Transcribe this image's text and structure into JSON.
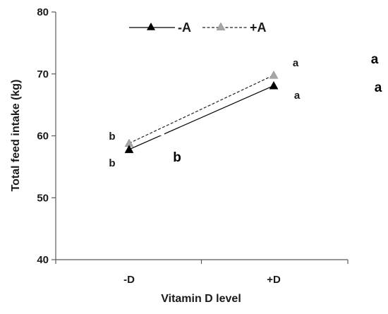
{
  "chart_data": {
    "type": "line",
    "title": "",
    "xlabel": "Vitamin D level",
    "ylabel": "Total feed intake (kg)",
    "categories": [
      "-D",
      "+D"
    ],
    "ylim": [
      40,
      80
    ],
    "yticks": [
      40,
      50,
      60,
      70,
      80
    ],
    "grid": false,
    "legend_position": "top",
    "series": [
      {
        "name": "-A",
        "values": [
          57.8,
          68.1
        ],
        "line_style": "solid",
        "color": "#000000",
        "marker_color": "#000000",
        "significance": [
          "b",
          "a"
        ]
      },
      {
        "name": "+A",
        "values": [
          58.8,
          69.8
        ],
        "line_style": "dashed",
        "color": "#222222",
        "marker_color": "#a6a6a6",
        "significance": [
          "b",
          "a"
        ]
      }
    ],
    "annotations": [
      "b",
      "a",
      "a"
    ]
  }
}
